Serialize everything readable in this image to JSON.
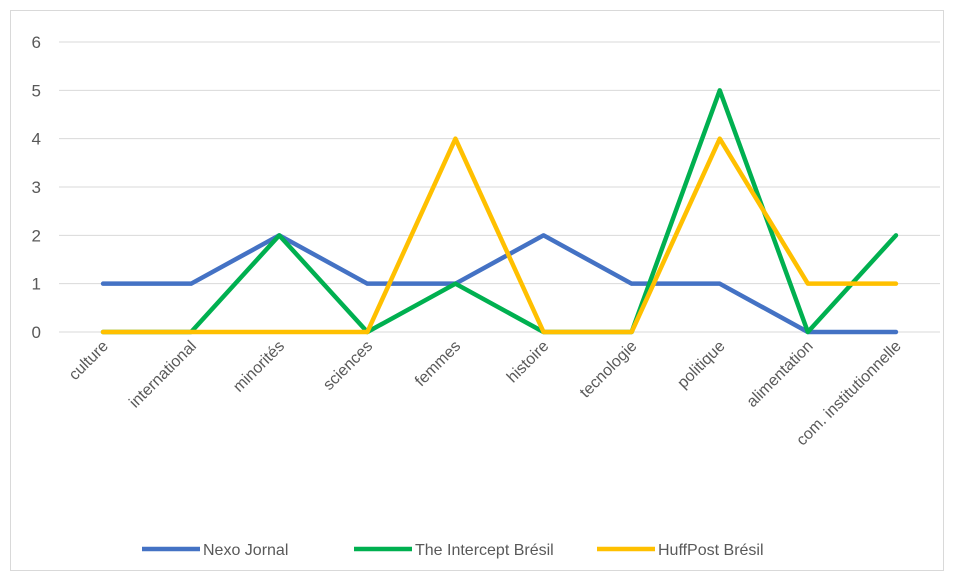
{
  "chart_data": {
    "type": "line",
    "categories": [
      "culture",
      "international",
      "minorités",
      "sciences",
      "femmes",
      "histoire",
      "tecnologie",
      "politique",
      "alimentation",
      "com. institutionnelle"
    ],
    "series": [
      {
        "name": "Nexo Jornal",
        "color": "#4472c4",
        "values": [
          1,
          1,
          2,
          1,
          1,
          2,
          1,
          1,
          0,
          0
        ]
      },
      {
        "name": "The Intercept Brésil",
        "color": "#00b050",
        "values": [
          0,
          0,
          2,
          0,
          1,
          0,
          0,
          5,
          0,
          2
        ]
      },
      {
        "name": "HuffPost Brésil",
        "color": "#ffc000",
        "values": [
          0,
          0,
          0,
          0,
          4,
          0,
          0,
          4,
          1,
          1
        ]
      }
    ],
    "ylim": [
      0,
      6
    ],
    "yticks": [
      0,
      1,
      2,
      3,
      4,
      5,
      6
    ],
    "grid": true,
    "legend": "bottom"
  }
}
